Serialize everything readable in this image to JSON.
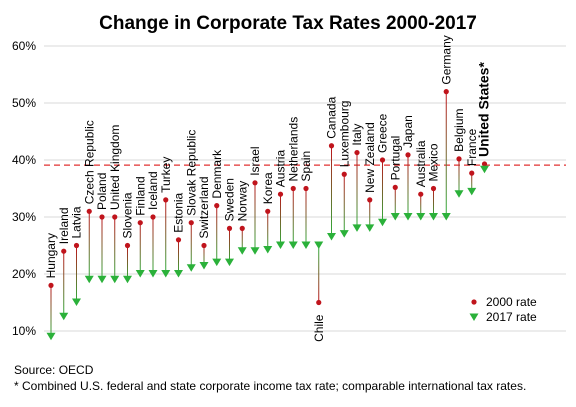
{
  "chart_data": {
    "type": "scatter",
    "title": "Change in Corporate Tax Rates 2000-2017",
    "xlabel": "",
    "ylabel": "",
    "ylim": [
      0.08,
      0.62
    ],
    "y_ticks": [
      "10%",
      "20%",
      "30%",
      "40%",
      "50%",
      "60%"
    ],
    "y_tick_values": [
      0.1,
      0.2,
      0.3,
      0.4,
      0.5,
      0.6
    ],
    "grid": true,
    "legend_position": "bottom-right",
    "reference_line": {
      "value": 0.391,
      "color": "#e03030",
      "style": "dashed"
    },
    "categories": [
      "Hungary",
      "Ireland",
      "Latvia",
      "Czech Republic",
      "Poland",
      "United Kingdom",
      "Slovenia",
      "Finland",
      "Iceland",
      "Turkey",
      "Estonia",
      "Slovak Republic",
      "Switzerland",
      "Denmark",
      "Sweden",
      "Norway",
      "Israel",
      "Korea",
      "Austria",
      "Netherlands",
      "Spain",
      "Chile",
      "Canada",
      "Luxembourg",
      "Italy",
      "New Zealand",
      "Greece",
      "Portugal",
      "Japan",
      "Australia",
      "Mexico",
      "Germany",
      "Belgium",
      "France",
      "United States*"
    ],
    "series": [
      {
        "name": "2000 rate",
        "color": "#c0141c",
        "values": [
          0.18,
          0.24,
          0.25,
          0.31,
          0.3,
          0.3,
          0.25,
          0.29,
          0.3,
          0.33,
          0.26,
          0.29,
          0.25,
          0.32,
          0.28,
          0.28,
          0.36,
          0.31,
          0.34,
          0.35,
          0.35,
          0.15,
          0.425,
          0.375,
          0.413,
          0.33,
          0.4,
          0.352,
          0.409,
          0.34,
          0.35,
          0.52,
          0.402,
          0.377,
          0.393
        ]
      },
      {
        "name": "2017 rate",
        "color": "#2bb13a",
        "values": [
          0.09,
          0.125,
          0.15,
          0.19,
          0.19,
          0.19,
          0.19,
          0.2,
          0.2,
          0.2,
          0.2,
          0.21,
          0.214,
          0.22,
          0.22,
          0.24,
          0.24,
          0.242,
          0.25,
          0.25,
          0.25,
          0.25,
          0.265,
          0.27,
          0.28,
          0.28,
          0.29,
          0.3,
          0.3,
          0.3,
          0.3,
          0.3,
          0.34,
          0.344,
          0.383
        ]
      }
    ]
  },
  "footer": {
    "source": "Source: OECD",
    "note": "* Combined U.S. federal and state corporate income tax rate; comparable international tax rates."
  }
}
